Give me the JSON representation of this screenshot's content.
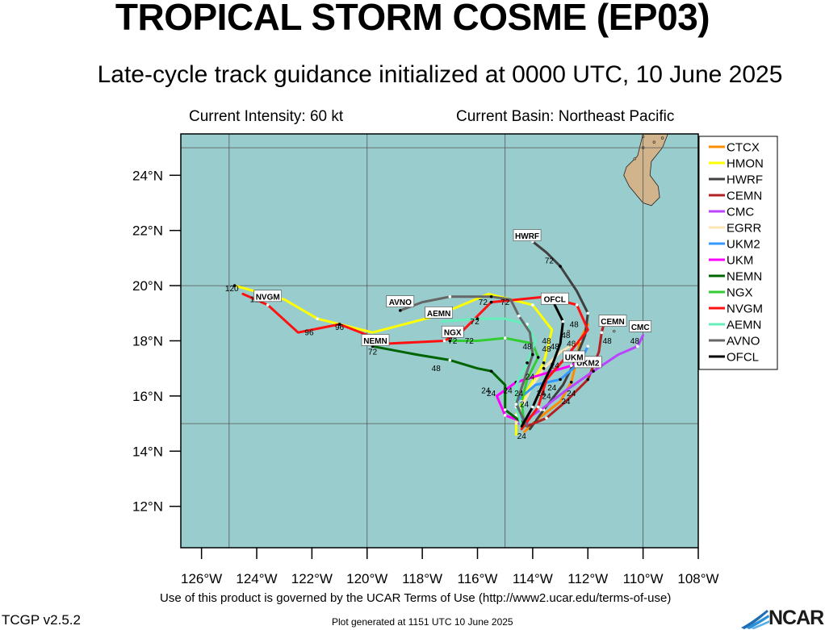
{
  "header": {
    "title": "TROPICAL STORM COSME (EP03)",
    "subtitle": "Late-cycle track guidance initialized at 0000 UTC, 10 June 2025",
    "intensity": "Current Intensity: 60 kt",
    "basin": "Current Basin: Northeast Pacific"
  },
  "footer": {
    "terms": "Use of this product is governed by the UCAR Terms of Use (http://www2.ucar.edu/terms-of-use)",
    "version": "TCGP v2.5.2",
    "generated": "Plot generated at 1151 UTC   10 June 2025",
    "logo_text": "NCAR"
  },
  "colors": {
    "ocean": "#99cccc",
    "land": "#d2b48c",
    "grid": "#555555"
  },
  "chart_data": {
    "type": "map-track",
    "xlim": [
      -126.75,
      -108
    ],
    "ylim": [
      10.5,
      25.5
    ],
    "x_ticks": [
      {
        "value": -126,
        "label": "126°W"
      },
      {
        "value": -124,
        "label": "124°W"
      },
      {
        "value": -122,
        "label": "122°W"
      },
      {
        "value": -120,
        "label": "120°W"
      },
      {
        "value": -118,
        "label": "118°W"
      },
      {
        "value": -116,
        "label": "116°W"
      },
      {
        "value": -114,
        "label": "114°W"
      },
      {
        "value": -112,
        "label": "112°W"
      },
      {
        "value": -110,
        "label": "110°W"
      },
      {
        "value": -108,
        "label": "108°W"
      }
    ],
    "y_ticks": [
      {
        "value": 12,
        "label": "12°N"
      },
      {
        "value": 14,
        "label": "14°N"
      },
      {
        "value": 16,
        "label": "16°N"
      },
      {
        "value": 18,
        "label": "18°N"
      },
      {
        "value": 20,
        "label": "20°N"
      },
      {
        "value": 22,
        "label": "22°N"
      },
      {
        "value": 24,
        "label": "24°N"
      }
    ],
    "grid_lons": [
      -125,
      -120,
      -115,
      -110
    ],
    "grid_lats": [
      15,
      20,
      25
    ],
    "land": [
      [
        -110.0,
        25.5
      ],
      [
        -110.2,
        24.7
      ],
      [
        -110.6,
        24.3
      ],
      [
        -110.7,
        24.0
      ],
      [
        -110.5,
        23.6
      ],
      [
        -110.0,
        23.0
      ],
      [
        -109.7,
        22.9
      ],
      [
        -109.4,
        23.2
      ],
      [
        -109.45,
        23.6
      ],
      [
        -109.75,
        24.0
      ],
      [
        -109.7,
        24.5
      ],
      [
        -109.3,
        25.0
      ],
      [
        -109.1,
        25.5
      ]
    ],
    "islands": [
      [
        -110.0,
        25.4
      ],
      [
        -110.0,
        25.0
      ],
      [
        -110.3,
        24.6
      ],
      [
        -109.6,
        25.2
      ],
      [
        -109.3,
        25.35
      ],
      [
        -110.8,
        18.75
      ],
      [
        -112.7,
        18.35
      ],
      [
        -111.05,
        18.35
      ]
    ],
    "series": [
      {
        "name": "CTCX",
        "color": "#ff8c00",
        "points": [
          [
            -114.3,
            14.7
          ],
          [
            -113.9,
            15.1
          ],
          [
            -113.0,
            15.8
          ],
          [
            -112.6,
            16.5
          ],
          [
            -112.4,
            17.3
          ],
          [
            -112.3,
            18.0
          ],
          [
            -112.0,
            18.6
          ]
        ],
        "labels": [
          {
            "x": -113.5,
            "y": 15.9,
            "t": "24"
          },
          {
            "x": -112.6,
            "y": 17.8,
            "t": "48"
          }
        ]
      },
      {
        "name": "HMON",
        "color": "#ffff00",
        "points": [
          [
            -114.6,
            14.6
          ],
          [
            -114.6,
            15.3
          ],
          [
            -114.2,
            16.2
          ],
          [
            -113.6,
            17.2
          ],
          [
            -113.3,
            18.4
          ],
          [
            -114.0,
            19.3
          ],
          [
            -115.6,
            19.7
          ],
          [
            -117.5,
            18.9
          ],
          [
            -119.8,
            18.3
          ],
          [
            -121.8,
            18.8
          ],
          [
            -123.0,
            19.5
          ],
          [
            -124.8,
            20.0
          ]
        ],
        "labels": [
          {
            "x": -114.4,
            "y": 14.45,
            "t": "24"
          },
          {
            "x": -113.2,
            "y": 17.7,
            "t": "48"
          },
          {
            "x": -115.8,
            "y": 19.3,
            "t": "72"
          },
          {
            "x": -121.0,
            "y": 18.4,
            "t": "96"
          },
          {
            "x": -124.9,
            "y": 19.8,
            "t": "120"
          }
        ]
      },
      {
        "name": "HWRF",
        "color": "#404040",
        "points": [
          [
            -114.1,
            14.8
          ],
          [
            -113.6,
            15.5
          ],
          [
            -112.9,
            16.4
          ],
          [
            -112.5,
            17.2
          ],
          [
            -112.1,
            18.2
          ],
          [
            -112.0,
            19.0
          ],
          [
            -112.4,
            19.8
          ],
          [
            -113.0,
            20.7
          ],
          [
            -113.5,
            21.2
          ],
          [
            -114.0,
            21.6
          ]
        ],
        "labels": [
          {
            "x": -113.3,
            "y": 16.2,
            "t": "24"
          },
          {
            "x": -112.4,
            "y": 17.4,
            "t": "48"
          },
          {
            "x": -113.4,
            "y": 20.8,
            "t": "72"
          }
        ],
        "box": {
          "x": -114.2,
          "y": 21.8,
          "t": "HWRF"
        }
      },
      {
        "name": "CEMN",
        "color": "#b22222",
        "points": [
          [
            -114.2,
            14.9
          ],
          [
            -113.5,
            15.2
          ],
          [
            -112.8,
            15.8
          ],
          [
            -112.0,
            16.6
          ],
          [
            -111.6,
            17.6
          ],
          [
            -111.5,
            18.3
          ],
          [
            -111.4,
            18.7
          ]
        ],
        "labels": [
          {
            "x": -112.8,
            "y": 15.7,
            "t": "24"
          },
          {
            "x": -111.3,
            "y": 17.9,
            "t": "48"
          }
        ],
        "box": {
          "x": -111.1,
          "y": 18.7,
          "t": "CEMN"
        }
      },
      {
        "name": "CMC",
        "color": "#bb44ff",
        "points": [
          [
            -114.5,
            15.0
          ],
          [
            -113.7,
            15.5
          ],
          [
            -112.8,
            16.2
          ],
          [
            -111.8,
            16.9
          ],
          [
            -110.9,
            17.5
          ],
          [
            -110.2,
            17.8
          ],
          [
            -110.0,
            18.2
          ]
        ],
        "labels": [
          {
            "x": -112.6,
            "y": 16.0,
            "t": "24"
          },
          {
            "x": -110.3,
            "y": 17.9,
            "t": "48"
          }
        ],
        "box": {
          "x": -110.1,
          "y": 18.5,
          "t": "CMC"
        }
      },
      {
        "name": "EGRR",
        "color": "#ffe4b5",
        "points": [
          [
            -114.6,
            15.0
          ],
          [
            -114.4,
            15.6
          ],
          [
            -114.0,
            16.4
          ],
          [
            -113.6,
            17.0
          ],
          [
            -113.0,
            17.6
          ],
          [
            -112.3,
            18.0
          ]
        ],
        "labels": [
          {
            "x": -114.3,
            "y": 15.6,
            "t": "24"
          }
        ]
      },
      {
        "name": "UKM2",
        "color": "#3399ff",
        "points": [
          [
            -114.3,
            15.0
          ],
          [
            -114.6,
            15.8
          ],
          [
            -113.9,
            16.4
          ],
          [
            -113.0,
            16.6
          ],
          [
            -112.3,
            17.2
          ],
          [
            -112.0,
            17.8
          ]
        ],
        "labels": [
          {
            "x": -114.9,
            "y": 16.1,
            "t": "24"
          }
        ],
        "box": {
          "x": -112.0,
          "y": 17.2,
          "t": "UKM2"
        }
      },
      {
        "name": "UKM",
        "color": "#ff00ff",
        "points": [
          [
            -114.2,
            15.0
          ],
          [
            -115.0,
            15.3
          ],
          [
            -115.3,
            16.0
          ],
          [
            -114.6,
            16.5
          ],
          [
            -113.6,
            16.8
          ],
          [
            -112.6,
            17.1
          ],
          [
            -112.1,
            17.4
          ]
        ],
        "labels": [
          {
            "x": -115.7,
            "y": 16.1,
            "t": "24"
          }
        ],
        "box": {
          "x": -112.5,
          "y": 17.4,
          "t": "UKM"
        }
      },
      {
        "name": "NEMN",
        "color": "#006400",
        "points": [
          [
            -114.2,
            14.9
          ],
          [
            -115.0,
            15.5
          ],
          [
            -115.0,
            16.4
          ],
          [
            -115.5,
            16.9
          ],
          [
            -116.0,
            17.0
          ],
          [
            -117.0,
            17.3
          ],
          [
            -118.2,
            17.5
          ],
          [
            -119.8,
            17.8
          ]
        ],
        "labels": [
          {
            "x": -115.5,
            "y": 16.0,
            "t": "24"
          },
          {
            "x": -117.5,
            "y": 16.9,
            "t": "48"
          },
          {
            "x": -119.8,
            "y": 17.5,
            "t": "72"
          }
        ],
        "box": {
          "x": -119.7,
          "y": 18.0,
          "t": "NEMN"
        }
      },
      {
        "name": "NGX",
        "color": "#33cc33",
        "points": [
          [
            -114.3,
            14.9
          ],
          [
            -114.4,
            15.8
          ],
          [
            -114.2,
            16.6
          ],
          [
            -113.8,
            17.4
          ],
          [
            -114.0,
            17.9
          ],
          [
            -115.0,
            18.1
          ],
          [
            -116.0,
            18.0
          ],
          [
            -117.0,
            18.0
          ]
        ],
        "labels": [
          {
            "x": -114.1,
            "y": 16.6,
            "t": "24"
          },
          {
            "x": -113.5,
            "y": 17.6,
            "t": "48"
          },
          {
            "x": -116.9,
            "y": 17.9,
            "t": "72"
          }
        ],
        "box": {
          "x": -116.9,
          "y": 18.3,
          "t": "NGX"
        }
      },
      {
        "name": "NVGM",
        "color": "#ff1111",
        "points": [
          [
            -114.4,
            14.8
          ],
          [
            -113.8,
            15.6
          ],
          [
            -113.5,
            16.6
          ],
          [
            -112.8,
            17.4
          ],
          [
            -112.0,
            18.4
          ],
          [
            -112.4,
            19.3
          ],
          [
            -113.5,
            19.6
          ],
          [
            -115.5,
            19.4
          ],
          [
            -116.5,
            18.4
          ],
          [
            -117.2,
            18.0
          ],
          [
            -119.2,
            17.9
          ],
          [
            -121.0,
            18.6
          ],
          [
            -122.5,
            18.3
          ],
          [
            -123.6,
            19.3
          ],
          [
            -124.5,
            19.7
          ]
        ],
        "labels": [
          {
            "x": -113.7,
            "y": 16.0,
            "t": "24"
          },
          {
            "x": -112.5,
            "y": 18.5,
            "t": "48"
          },
          {
            "x": -116.3,
            "y": 17.9,
            "t": "72"
          },
          {
            "x": -122.1,
            "y": 18.2,
            "t": "96"
          },
          {
            "x": -124.0,
            "y": 19.4,
            "t": "120"
          }
        ],
        "box": {
          "x": -123.6,
          "y": 19.6,
          "t": "NVGM"
        }
      },
      {
        "name": "AEMN",
        "color": "#66eebb",
        "points": [
          [
            -114.4,
            14.9
          ],
          [
            -114.6,
            15.6
          ],
          [
            -114.6,
            16.4
          ],
          [
            -114.2,
            17.2
          ],
          [
            -113.9,
            18.0
          ],
          [
            -114.2,
            18.6
          ],
          [
            -115.0,
            18.8
          ],
          [
            -116.0,
            18.8
          ],
          [
            -117.3,
            18.7
          ]
        ],
        "labels": [
          {
            "x": -114.5,
            "y": 16.0,
            "t": "24"
          },
          {
            "x": -113.5,
            "y": 17.9,
            "t": "48"
          },
          {
            "x": -116.1,
            "y": 18.6,
            "t": "72"
          }
        ],
        "box": {
          "x": -117.4,
          "y": 19.0,
          "t": "AEMN"
        }
      },
      {
        "name": "AVNO",
        "color": "#666666",
        "points": [
          [
            -114.2,
            14.9
          ],
          [
            -114.6,
            15.7
          ],
          [
            -114.3,
            16.6
          ],
          [
            -114.0,
            17.5
          ],
          [
            -114.1,
            18.3
          ],
          [
            -114.5,
            18.9
          ],
          [
            -114.8,
            19.5
          ],
          [
            -115.5,
            19.6
          ],
          [
            -116.0,
            19.6
          ],
          [
            -117.0,
            19.6
          ],
          [
            -118.0,
            19.4
          ],
          [
            -118.8,
            19.1
          ]
        ],
        "labels": [
          {
            "x": -114.2,
            "y": 17.7,
            "t": "48"
          },
          {
            "x": -115.0,
            "y": 19.3,
            "t": "72"
          }
        ],
        "box": {
          "x": -118.8,
          "y": 19.4,
          "t": "AVNO"
        }
      },
      {
        "name": "OFCL",
        "color": "#000000",
        "points": [
          [
            -114.4,
            14.9
          ],
          [
            -114.0,
            15.6
          ],
          [
            -113.6,
            16.5
          ],
          [
            -113.3,
            17.1
          ],
          [
            -113.0,
            17.9
          ],
          [
            -112.9,
            18.7
          ],
          [
            -113.2,
            19.3
          ]
        ],
        "labels": [
          {
            "x": -113.2,
            "y": 17.0,
            "t": "24"
          },
          {
            "x": -112.8,
            "y": 18.1,
            "t": "48"
          }
        ],
        "box": {
          "x": -113.2,
          "y": 19.5,
          "t": "OFCL"
        }
      }
    ]
  }
}
